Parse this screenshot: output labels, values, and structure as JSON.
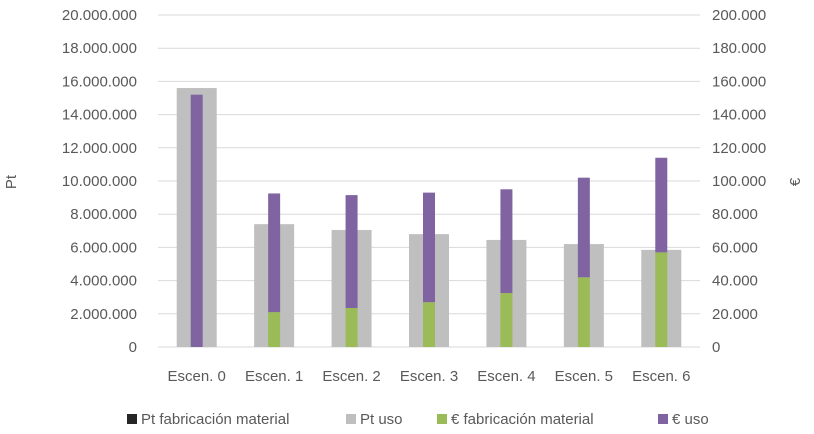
{
  "chart_data": {
    "type": "bar",
    "categories": [
      "Escen. 0",
      "Escen. 1",
      "Escen. 2",
      "Escen. 3",
      "Escen. 4",
      "Escen. 5",
      "Escen. 6"
    ],
    "series": [
      {
        "name": "Pt fabricación material",
        "axis": "left",
        "stack": "Pt",
        "color": "#262626",
        "values": [
          0,
          0,
          0,
          0,
          0,
          0,
          0
        ]
      },
      {
        "name": "Pt uso",
        "axis": "left",
        "stack": "Pt",
        "color": "#bfbfbf",
        "values": [
          15600000,
          7400000,
          7050000,
          6800000,
          6450000,
          6200000,
          5850000
        ]
      },
      {
        "name": "€ fabricación material",
        "axis": "right",
        "stack": "€",
        "color": "#9bbb59",
        "values": [
          0,
          21000,
          23500,
          27000,
          32500,
          42000,
          57000
        ]
      },
      {
        "name": "€ uso",
        "axis": "right",
        "stack": "€",
        "color": "#8064a2",
        "values": [
          152000,
          71500,
          68000,
          66000,
          62500,
          60000,
          57000
        ]
      }
    ],
    "ylabel": "Pt",
    "y2label": "€",
    "ylim": [
      0,
      20000000
    ],
    "y2lim": [
      0,
      200000
    ],
    "yticks": [
      "0",
      "2.000.000",
      "4.000.000",
      "6.000.000",
      "8.000.000",
      "10.000.000",
      "12.000.000",
      "14.000.000",
      "16.000.000",
      "18.000.000",
      "20.000.000"
    ],
    "y2ticks": [
      "0",
      "20.000",
      "40.000",
      "60.000",
      "80.000",
      "100.000",
      "120.000",
      "140.000",
      "160.000",
      "180.000",
      "200.000"
    ],
    "grid": true,
    "legend": "bottom"
  }
}
